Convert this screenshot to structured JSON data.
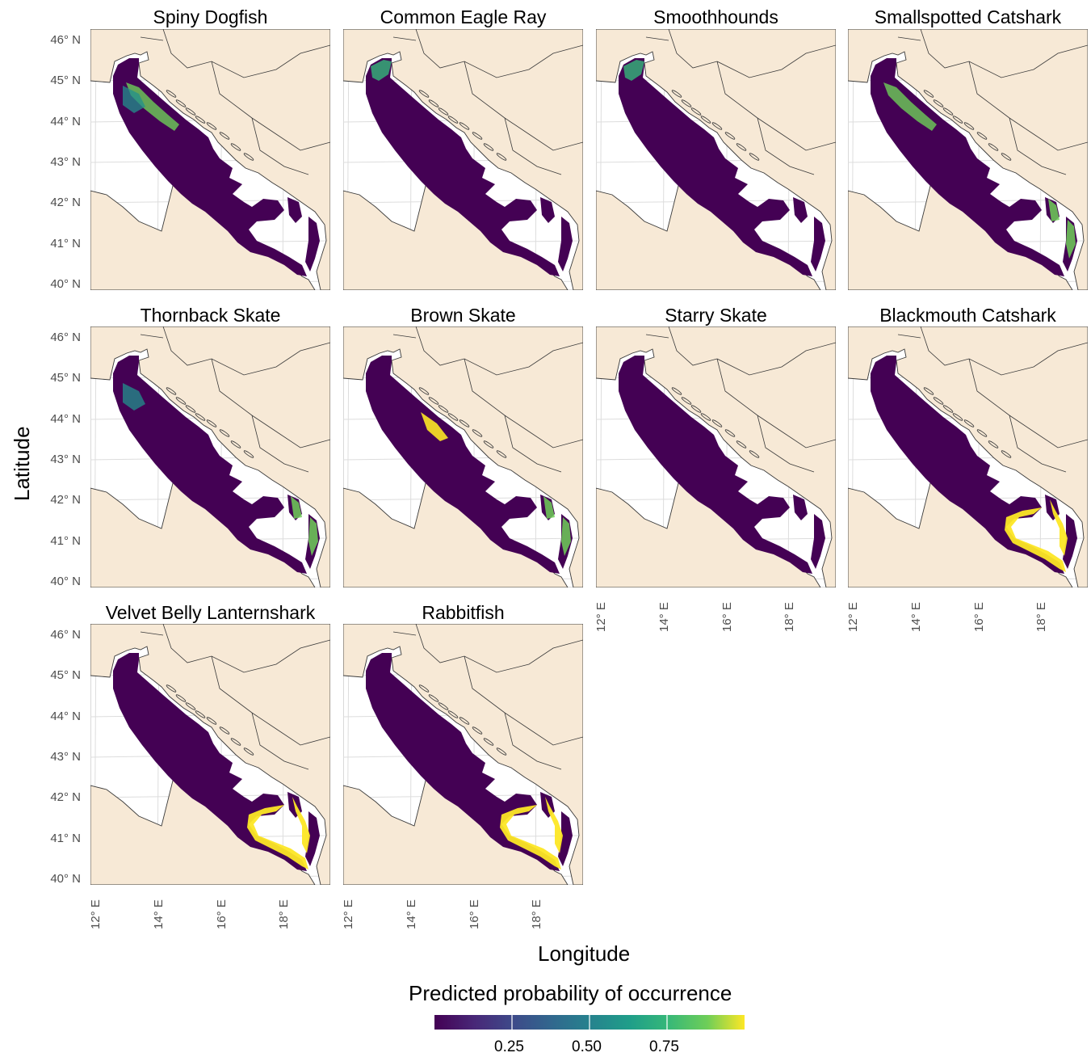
{
  "axes": {
    "x_title": "Longitude",
    "y_title": "Latitude"
  },
  "lat_ticks": [
    "46° N",
    "45° N",
    "44° N",
    "43° N",
    "42° N",
    "41° N",
    "40° N"
  ],
  "lon_ticks": [
    "12° E",
    "14° E",
    "16° E",
    "18° E"
  ],
  "colors": {
    "land": "#f7e9d6",
    "sea": "#ffffff",
    "border": "#3a3a3a",
    "low": "#440154",
    "mid": "#21908c",
    "high": "#fde725"
  },
  "legend": {
    "title": "Predicted probability of occurrence",
    "labels": [
      "0.25",
      "0.50",
      "0.75"
    ]
  },
  "panels": [
    {
      "title": "Spiny Dogfish",
      "hotspots": [
        "north-east-coast",
        "north-central"
      ]
    },
    {
      "title": "Common Eagle Ray",
      "hotspots": [
        "north-west-coast"
      ]
    },
    {
      "title": "Smoothhounds",
      "hotspots": [
        "north-west-coast"
      ]
    },
    {
      "title": "Smallspotted Catshark",
      "hotspots": [
        "north-east-coast",
        "south-east-channel"
      ]
    },
    {
      "title": "Thornback Skate",
      "hotspots": [
        "north-central",
        "south-east-channel"
      ]
    },
    {
      "title": "Brown Skate",
      "hotspots": [
        "central-east-coast",
        "south-east-channel"
      ]
    },
    {
      "title": "Starry Skate",
      "hotspots": []
    },
    {
      "title": "Blackmouth Catshark",
      "hotspots": [
        "south-basin-rim"
      ]
    },
    {
      "title": "Velvet Belly Lanternshark",
      "hotspots": [
        "south-basin-rim"
      ]
    },
    {
      "title": "Rabbitfish",
      "hotspots": [
        "south-basin-rim"
      ]
    }
  ]
}
